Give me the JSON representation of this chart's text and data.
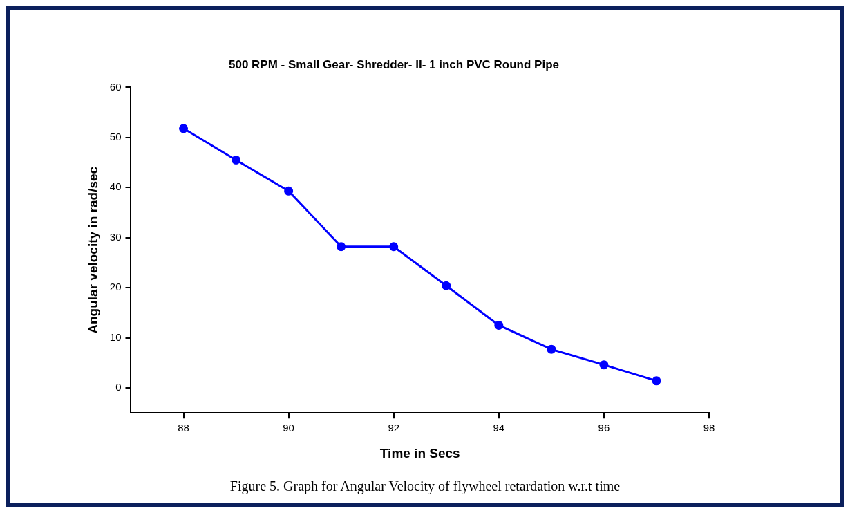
{
  "chart_data": {
    "type": "line",
    "title": "500 RPM - Small Gear- Shredder- II- 1 inch PVC Round Pipe",
    "xlabel": "Time in Secs",
    "ylabel": "Angular velocity in rad/sec",
    "x": [
      88,
      89,
      90,
      91,
      92,
      93,
      94,
      95,
      96,
      97
    ],
    "series": [
      {
        "color": "#0000ff",
        "values": [
          51.8,
          45.5,
          39.3,
          28.2,
          28.2,
          20.4,
          12.5,
          7.7,
          4.6,
          1.4
        ]
      }
    ],
    "xlim": [
      87,
      98
    ],
    "xticks": [
      88,
      90,
      92,
      94,
      96,
      98
    ],
    "ylim": [
      -5,
      60
    ],
    "yticks": [
      0,
      10,
      20,
      30,
      40,
      50,
      60
    ],
    "grid": false,
    "legend": false,
    "marker": "circle",
    "line_style": "solid",
    "annotations": [
      "Figure 5. Graph for Angular Velocity of flywheel retardation w.r.t time"
    ]
  }
}
